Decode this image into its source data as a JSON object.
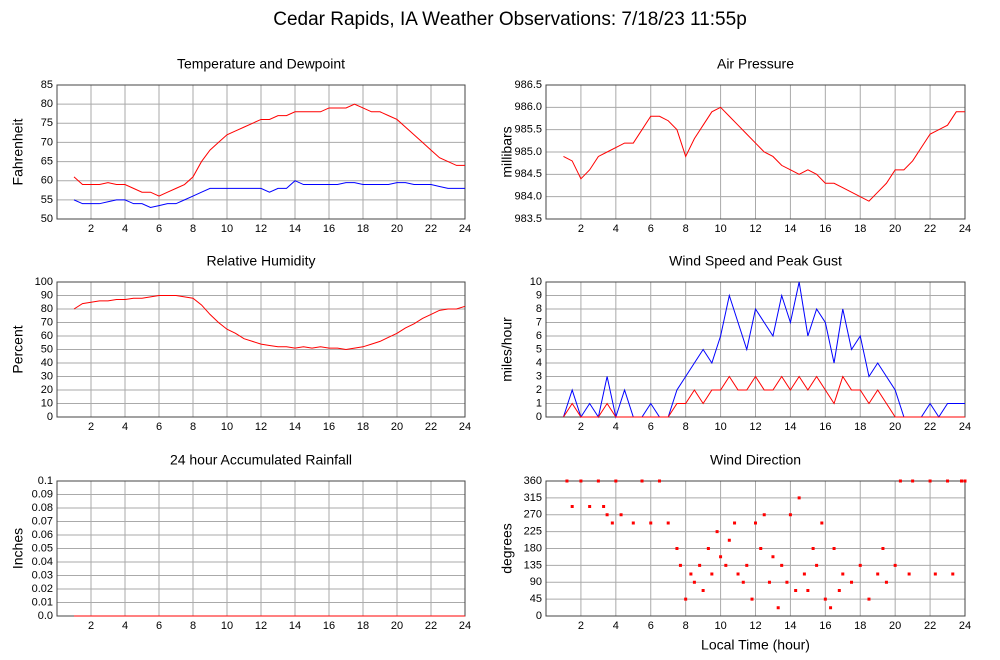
{
  "title": "Cedar Rapids, IA Weather Observations: 7/18/23 11:55p",
  "chart_data": [
    {
      "type": "line",
      "title": "Temperature and Dewpoint",
      "ylabel": "Fahrenheit",
      "grid": true,
      "x": [
        1,
        1.5,
        2,
        2.5,
        3,
        3.5,
        4,
        4.5,
        5,
        5.5,
        6,
        6.5,
        7,
        7.5,
        8,
        8.5,
        9,
        9.5,
        10,
        10.5,
        11,
        11.5,
        12,
        12.5,
        13,
        13.5,
        14,
        14.5,
        15,
        15.5,
        16,
        16.5,
        17,
        17.5,
        18,
        18.5,
        19,
        19.5,
        20,
        20.5,
        21,
        21.5,
        22,
        22.5,
        23,
        23.5,
        24
      ],
      "series": [
        {
          "color": "#ff0000",
          "values": [
            61,
            59,
            59,
            59,
            59.5,
            59,
            59,
            58,
            57,
            57,
            56,
            57,
            58,
            59,
            61,
            65,
            68,
            70,
            72,
            73,
            74,
            75,
            76,
            76,
            77,
            77,
            78,
            78,
            78,
            78,
            79,
            79,
            79,
            80,
            79,
            78,
            78,
            77,
            76,
            74,
            72,
            70,
            68,
            66,
            65,
            64,
            64
          ]
        },
        {
          "color": "#0000ff",
          "values": [
            55,
            54,
            54,
            54,
            54.5,
            55,
            55,
            54,
            54,
            53,
            53.5,
            54,
            54,
            55,
            56,
            57,
            58,
            58,
            58,
            58,
            58,
            58,
            58,
            57,
            58,
            58,
            60,
            59,
            59,
            59,
            59,
            59,
            59.5,
            59.5,
            59,
            59,
            59,
            59,
            59.5,
            59.5,
            59,
            59,
            59,
            58.5,
            58,
            58,
            58
          ]
        }
      ],
      "xlim": [
        0,
        24
      ],
      "xticks": [
        2,
        4,
        6,
        8,
        10,
        12,
        14,
        16,
        18,
        20,
        22,
        24
      ],
      "ylim": [
        50,
        85
      ],
      "yticks": [
        50,
        55,
        60,
        65,
        70,
        75,
        80,
        85
      ]
    },
    {
      "type": "line",
      "title": "Air Pressure",
      "ylabel": "millibars",
      "grid": true,
      "x": [
        1,
        1.5,
        2,
        2.5,
        3,
        3.5,
        4,
        4.5,
        5,
        5.5,
        6,
        6.5,
        7,
        7.5,
        8,
        8.5,
        9,
        9.5,
        10,
        10.5,
        11,
        11.5,
        12,
        12.5,
        13,
        13.5,
        14,
        14.5,
        15,
        15.5,
        16,
        16.5,
        17,
        17.5,
        18,
        18.5,
        19,
        19.5,
        20,
        20.5,
        21,
        21.5,
        22,
        22.5,
        23,
        23.5,
        24
      ],
      "series": [
        {
          "color": "#ff0000",
          "values": [
            984.9,
            984.8,
            984.4,
            984.6,
            984.9,
            985.0,
            985.1,
            985.2,
            985.2,
            985.5,
            985.8,
            985.8,
            985.7,
            985.5,
            984.9,
            985.3,
            985.6,
            985.9,
            986.0,
            985.8,
            985.6,
            985.4,
            985.2,
            985.0,
            984.9,
            984.7,
            984.6,
            984.5,
            984.6,
            984.5,
            984.3,
            984.3,
            984.2,
            984.1,
            984.0,
            983.9,
            984.1,
            984.3,
            984.6,
            984.6,
            984.8,
            985.1,
            985.4,
            985.5,
            985.6,
            985.9,
            985.9
          ]
        }
      ],
      "xlim": [
        0,
        24
      ],
      "xticks": [
        2,
        4,
        6,
        8,
        10,
        12,
        14,
        16,
        18,
        20,
        22,
        24
      ],
      "ylim": [
        983.5,
        986.5
      ],
      "yticks": [
        983.5,
        {
          "value": 984,
          "label": "984.0"
        },
        984.5,
        {
          "value": 985,
          "label": "985.0"
        },
        985.5,
        {
          "value": 986,
          "label": "986.0"
        },
        986.5
      ]
    },
    {
      "type": "line",
      "title": "Relative Humidity",
      "ylabel": "Percent",
      "grid": true,
      "x": [
        1,
        1.5,
        2,
        2.5,
        3,
        3.5,
        4,
        4.5,
        5,
        5.5,
        6,
        6.5,
        7,
        7.5,
        8,
        8.5,
        9,
        9.5,
        10,
        10.5,
        11,
        11.5,
        12,
        12.5,
        13,
        13.5,
        14,
        14.5,
        15,
        15.5,
        16,
        16.5,
        17,
        17.5,
        18,
        18.5,
        19,
        19.5,
        20,
        20.5,
        21,
        21.5,
        22,
        22.5,
        23,
        23.5,
        24
      ],
      "series": [
        {
          "color": "#ff0000",
          "values": [
            80,
            84,
            85,
            86,
            86,
            87,
            87,
            88,
            88,
            89,
            90,
            90,
            90,
            89,
            88,
            83,
            76,
            70,
            65,
            62,
            58,
            56,
            54,
            53,
            52,
            52,
            51,
            52,
            51,
            52,
            51,
            51,
            50,
            51,
            52,
            54,
            56,
            59,
            62,
            66,
            69,
            73,
            76,
            79,
            80,
            80,
            82
          ]
        }
      ],
      "xlim": [
        0,
        24
      ],
      "xticks": [
        2,
        4,
        6,
        8,
        10,
        12,
        14,
        16,
        18,
        20,
        22,
        24
      ],
      "ylim": [
        0,
        100
      ],
      "yticks": [
        0,
        10,
        20,
        30,
        40,
        50,
        60,
        70,
        80,
        90,
        100
      ]
    },
    {
      "type": "line",
      "title": "Wind Speed and Peak Gust",
      "ylabel": "miles/hour",
      "grid": true,
      "x": [
        1,
        1.5,
        2,
        2.5,
        3,
        3.5,
        4,
        4.5,
        5,
        5.5,
        6,
        6.5,
        7,
        7.5,
        8,
        8.5,
        9,
        9.5,
        10,
        10.5,
        11,
        11.5,
        12,
        12.5,
        13,
        13.5,
        14,
        14.5,
        15,
        15.5,
        16,
        16.5,
        17,
        17.5,
        18,
        18.5,
        19,
        19.5,
        20,
        20.5,
        21,
        21.5,
        22,
        22.5,
        23,
        23.5,
        24
      ],
      "series": [
        {
          "color": "#0000ff",
          "values": [
            0,
            2,
            0,
            1,
            0,
            3,
            0,
            2,
            0,
            0,
            1,
            0,
            0,
            2,
            3,
            4,
            5,
            4,
            6,
            9,
            7,
            5,
            8,
            7,
            6,
            9,
            7,
            10,
            6,
            8,
            7,
            4,
            8,
            5,
            6,
            3,
            4,
            3,
            2,
            0,
            0,
            0,
            1,
            0,
            1,
            1,
            1
          ]
        },
        {
          "color": "#ff0000",
          "values": [
            0,
            1,
            0,
            0,
            0,
            1,
            0,
            0,
            0,
            0,
            0,
            0,
            0,
            1,
            1,
            2,
            1,
            2,
            2,
            3,
            2,
            2,
            3,
            2,
            2,
            3,
            2,
            3,
            2,
            3,
            2,
            1,
            3,
            2,
            2,
            1,
            2,
            1,
            0,
            0,
            0,
            0,
            0,
            0,
            0,
            0,
            0
          ]
        }
      ],
      "xlim": [
        0,
        24
      ],
      "xticks": [
        2,
        4,
        6,
        8,
        10,
        12,
        14,
        16,
        18,
        20,
        22,
        24
      ],
      "ylim": [
        0,
        10
      ],
      "yticks": [
        0,
        1,
        2,
        3,
        4,
        5,
        6,
        7,
        8,
        9,
        10
      ]
    },
    {
      "type": "line",
      "title": "24 hour Accumulated Rainfall",
      "ylabel": "Inches",
      "grid": true,
      "x": [
        1,
        24
      ],
      "series": [
        {
          "color": "#ff0000",
          "values": [
            0,
            0
          ]
        }
      ],
      "xlim": [
        0,
        24
      ],
      "xticks": [
        2,
        4,
        6,
        8,
        10,
        12,
        14,
        16,
        18,
        20,
        22,
        24
      ],
      "ylim": [
        0,
        0.1
      ],
      "yticks": [
        {
          "value": 0,
          "label": "0.0"
        },
        0.01,
        0.02,
        0.03,
        0.04,
        0.05,
        0.06,
        0.07,
        0.08,
        0.09,
        0.1
      ]
    },
    {
      "type": "scatter",
      "title": "Wind Direction",
      "ylabel": "degrees",
      "xlabel": "Local Time (hour)",
      "grid": true,
      "x": [
        1.2,
        1.5,
        2,
        2.5,
        3,
        3.3,
        3.5,
        3.8,
        4,
        4.3,
        5,
        5.5,
        6,
        6.5,
        7,
        7.5,
        7.7,
        8,
        8.3,
        8.5,
        8.8,
        9,
        9.3,
        9.5,
        9.8,
        10,
        10.3,
        10.5,
        10.8,
        11,
        11.3,
        11.5,
        11.8,
        12,
        12.3,
        12.5,
        12.8,
        13,
        13.3,
        13.5,
        13.8,
        14,
        14.3,
        14.5,
        14.8,
        15,
        15.3,
        15.5,
        15.8,
        16,
        16.3,
        16.5,
        16.8,
        17,
        17.5,
        18,
        18.5,
        19,
        19.3,
        19.5,
        20,
        20.3,
        20.8,
        21,
        22,
        22.3,
        23,
        23.3,
        23.8,
        24
      ],
      "series": [
        {
          "color": "#ff0000",
          "values": [
            360,
            292,
            360,
            292,
            360,
            292,
            270,
            248,
            360,
            270,
            248,
            360,
            248,
            360,
            248,
            180,
            135,
            45,
            112,
            90,
            135,
            68,
            180,
            112,
            225,
            158,
            135,
            202,
            248,
            112,
            90,
            135,
            45,
            248,
            180,
            270,
            90,
            158,
            22,
            135,
            90,
            270,
            68,
            315,
            112,
            68,
            180,
            135,
            248,
            45,
            22,
            180,
            68,
            112,
            90,
            135,
            45,
            112,
            180,
            90,
            135,
            360,
            112,
            360,
            360,
            112,
            360,
            112,
            360,
            360
          ]
        }
      ],
      "xlim": [
        0,
        24
      ],
      "xticks": [
        2,
        4,
        6,
        8,
        10,
        12,
        14,
        16,
        18,
        20,
        22,
        24
      ],
      "ylim": [
        0,
        360
      ],
      "yticks": [
        0,
        45,
        90,
        135,
        180,
        225,
        270,
        315,
        360
      ]
    }
  ]
}
